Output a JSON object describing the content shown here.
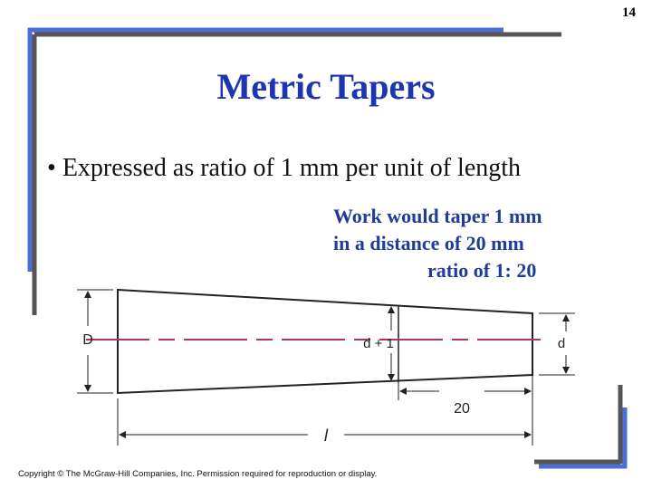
{
  "page_number": "14",
  "title": "Metric Tapers",
  "bullet": "Expressed as ratio of 1 mm per unit of length",
  "note": {
    "lines": [
      "Work would taper 1 mm",
      "in a distance of 20 mm",
      "ratio of 1: 20"
    ]
  },
  "diagram": {
    "labels": {
      "big_diameter": "D",
      "mid_diameter": "d + 1",
      "small_diameter": "d",
      "distance": "20",
      "length": "l"
    }
  },
  "copyright": "Copyright © The McGraw-Hill Companies, Inc. Permission required for reproduction or display."
}
